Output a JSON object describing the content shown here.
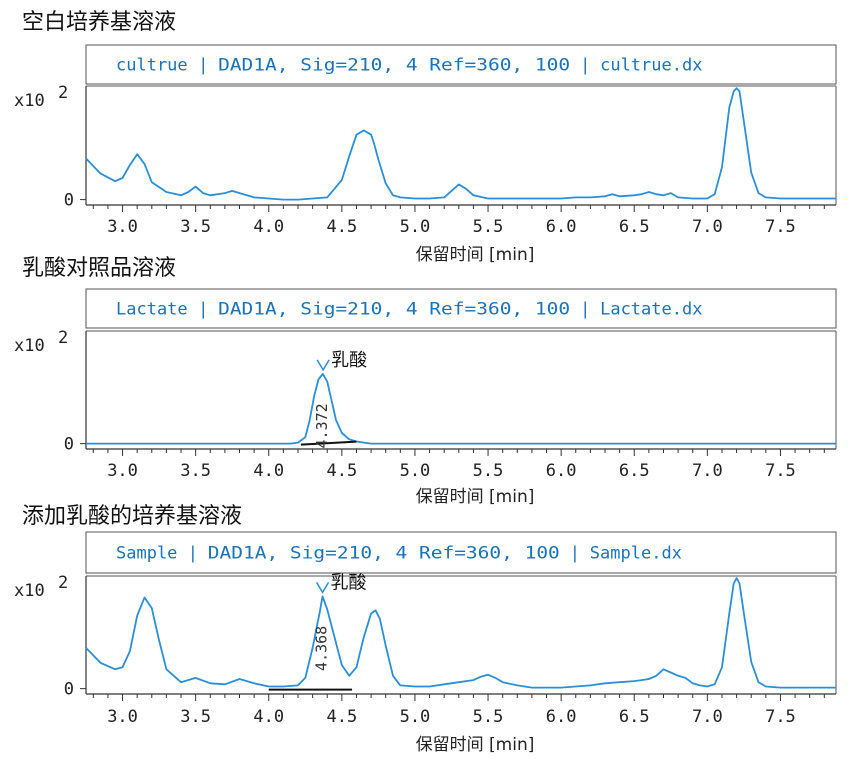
{
  "chart_data": [
    {
      "type": "line",
      "title": "空白培养基溶液",
      "header": {
        "name": "cultrue",
        "signal": "DAD1A, Sig=210, 4 Ref=360, 100",
        "file": "cultrue.dx"
      },
      "y_exponent": "x10",
      "y_power": "2",
      "y_ticks": [
        "0"
      ],
      "xlabel": "保留时间 [min]",
      "x_ticks": [
        "3.0",
        "3.5",
        "4.0",
        "4.5",
        "5.0",
        "5.5",
        "6.0",
        "6.5",
        "7.0",
        "7.5"
      ],
      "xlim": [
        2.75,
        7.88
      ],
      "ylim": [
        -0.05,
        1.05
      ],
      "series": [
        {
          "x": [
            2.75,
            2.85,
            2.95,
            3.0,
            3.05,
            3.1,
            3.15,
            3.2,
            3.3,
            3.4,
            3.45,
            3.5,
            3.55,
            3.6,
            3.7,
            3.75,
            3.8,
            3.9,
            4.0,
            4.1,
            4.2,
            4.3,
            4.4,
            4.5,
            4.55,
            4.6,
            4.65,
            4.7,
            4.72,
            4.75,
            4.8,
            4.85,
            4.9,
            5.0,
            5.1,
            5.2,
            5.25,
            5.3,
            5.35,
            5.4,
            5.5,
            5.6,
            5.7,
            5.8,
            5.9,
            6.0,
            6.1,
            6.2,
            6.3,
            6.35,
            6.4,
            6.5,
            6.55,
            6.6,
            6.65,
            6.7,
            6.75,
            6.8,
            6.9,
            7.0,
            7.05,
            7.1,
            7.15,
            7.18,
            7.2,
            7.22,
            7.25,
            7.3,
            7.35,
            7.4,
            7.5,
            7.6,
            7.7,
            7.8,
            7.88
          ],
          "y": [
            0.38,
            0.24,
            0.17,
            0.2,
            0.32,
            0.42,
            0.33,
            0.16,
            0.07,
            0.04,
            0.07,
            0.12,
            0.06,
            0.04,
            0.06,
            0.08,
            0.06,
            0.02,
            0.01,
            0.0,
            0.0,
            0.01,
            0.02,
            0.18,
            0.4,
            0.6,
            0.64,
            0.6,
            0.52,
            0.37,
            0.15,
            0.04,
            0.02,
            0.01,
            0.01,
            0.02,
            0.08,
            0.14,
            0.1,
            0.04,
            0.01,
            0.01,
            0.01,
            0.01,
            0.01,
            0.01,
            0.02,
            0.02,
            0.03,
            0.05,
            0.03,
            0.04,
            0.05,
            0.07,
            0.05,
            0.04,
            0.06,
            0.02,
            0.01,
            0.01,
            0.05,
            0.3,
            0.85,
            1.0,
            1.03,
            1.0,
            0.72,
            0.25,
            0.06,
            0.02,
            0.01,
            0.01,
            0.01,
            0.01,
            0.01
          ]
        }
      ],
      "annotations": []
    },
    {
      "type": "line",
      "title": "乳酸对照品溶液",
      "header": {
        "name": "Lactate",
        "signal": "DAD1A, Sig=210, 4 Ref=360, 100",
        "file": "Lactate.dx"
      },
      "y_exponent": "x10",
      "y_power": "2",
      "y_ticks": [
        "0"
      ],
      "xlabel": "保留时间 [min]",
      "x_ticks": [
        "3.0",
        "3.5",
        "4.0",
        "4.5",
        "5.0",
        "5.5",
        "6.0",
        "6.5",
        "7.0",
        "7.5"
      ],
      "xlim": [
        2.75,
        7.88
      ],
      "ylim": [
        -0.05,
        1.05
      ],
      "series": [
        {
          "x": [
            2.75,
            3.0,
            3.5,
            4.0,
            4.15,
            4.2,
            4.25,
            4.28,
            4.31,
            4.34,
            4.37,
            4.4,
            4.43,
            4.46,
            4.5,
            4.55,
            4.6,
            4.65,
            4.7,
            5.0,
            5.5,
            6.0,
            6.5,
            7.0,
            7.5,
            7.88
          ],
          "y": [
            0.0,
            0.0,
            0.0,
            0.0,
            0.0,
            0.01,
            0.06,
            0.22,
            0.44,
            0.6,
            0.65,
            0.58,
            0.4,
            0.22,
            0.1,
            0.04,
            0.02,
            0.01,
            0.0,
            0.0,
            0.0,
            0.0,
            0.0,
            0.0,
            0.0,
            0.0
          ]
        }
      ],
      "annotations": [
        {
          "label": "乳酸",
          "rt": "4.372",
          "x": 4.372,
          "y": 0.65,
          "baseline_x": [
            4.22,
            4.6
          ]
        }
      ]
    },
    {
      "type": "line",
      "title": "添加乳酸的培养基溶液",
      "header": {
        "name": "Sample",
        "signal": "DAD1A, Sig=210, 4 Ref=360, 100",
        "file": "Sample.dx"
      },
      "y_exponent": "x10",
      "y_power": "2",
      "y_ticks": [
        "0"
      ],
      "xlabel": "保留时间 [min]",
      "x_ticks": [
        "3.0",
        "3.5",
        "4.0",
        "4.5",
        "5.0",
        "5.5",
        "6.0",
        "6.5",
        "7.0",
        "7.5"
      ],
      "xlim": [
        2.75,
        7.88
      ],
      "ylim": [
        -0.05,
        1.05
      ],
      "series": [
        {
          "x": [
            2.75,
            2.85,
            2.95,
            3.0,
            3.05,
            3.1,
            3.15,
            3.2,
            3.25,
            3.3,
            3.4,
            3.5,
            3.6,
            3.7,
            3.8,
            3.9,
            4.0,
            4.1,
            4.2,
            4.25,
            4.3,
            4.35,
            4.368,
            4.4,
            4.45,
            4.5,
            4.55,
            4.6,
            4.65,
            4.7,
            4.73,
            4.76,
            4.8,
            4.85,
            4.9,
            5.0,
            5.1,
            5.2,
            5.3,
            5.4,
            5.45,
            5.5,
            5.55,
            5.6,
            5.7,
            5.8,
            5.9,
            6.0,
            6.1,
            6.2,
            6.3,
            6.4,
            6.5,
            6.55,
            6.6,
            6.65,
            6.7,
            6.75,
            6.8,
            6.85,
            6.9,
            6.95,
            7.0,
            7.05,
            7.1,
            7.15,
            7.18,
            7.2,
            7.22,
            7.25,
            7.3,
            7.35,
            7.4,
            7.5,
            7.6,
            7.7,
            7.8,
            7.88
          ],
          "y": [
            0.38,
            0.24,
            0.18,
            0.2,
            0.35,
            0.68,
            0.85,
            0.75,
            0.45,
            0.18,
            0.06,
            0.1,
            0.05,
            0.04,
            0.09,
            0.05,
            0.02,
            0.02,
            0.03,
            0.1,
            0.38,
            0.72,
            0.86,
            0.74,
            0.48,
            0.22,
            0.12,
            0.2,
            0.48,
            0.7,
            0.73,
            0.65,
            0.4,
            0.12,
            0.03,
            0.02,
            0.02,
            0.04,
            0.06,
            0.08,
            0.11,
            0.13,
            0.1,
            0.06,
            0.03,
            0.01,
            0.01,
            0.01,
            0.02,
            0.03,
            0.05,
            0.06,
            0.07,
            0.08,
            0.09,
            0.12,
            0.18,
            0.15,
            0.12,
            0.1,
            0.05,
            0.03,
            0.02,
            0.04,
            0.2,
            0.7,
            0.98,
            1.03,
            0.98,
            0.7,
            0.25,
            0.06,
            0.02,
            0.01,
            0.01,
            0.01,
            0.01,
            0.01
          ]
        }
      ],
      "annotations": [
        {
          "label": "乳酸",
          "rt": "4.368",
          "x": 4.368,
          "y": 0.86,
          "baseline_x": [
            4.0,
            4.57
          ]
        }
      ]
    }
  ]
}
